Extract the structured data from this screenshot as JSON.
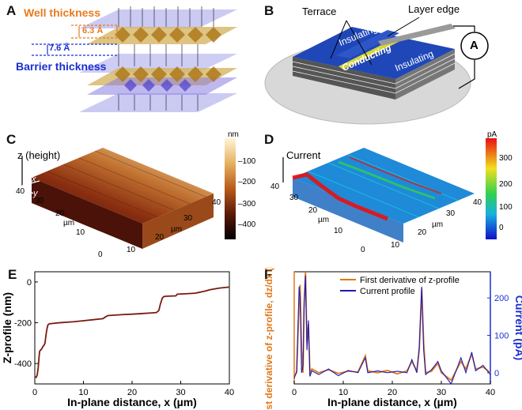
{
  "panels": {
    "A": {
      "label": "A",
      "well_label": "Well thickness",
      "barrier_label": "Barrier thickness",
      "well_value": "6.3 Å",
      "barrier_value": "7.6 Å",
      "colors": {
        "well": "#e87b1e",
        "barrier": "#1a2fd0"
      }
    },
    "B": {
      "label": "B",
      "terrace": "Terrace",
      "layer_edge": "Layer edge",
      "insulating_1": "Insulating",
      "conducting": "Conducting",
      "insulating_2": "Insulating",
      "ammeter": "A"
    },
    "C": {
      "label": "C",
      "z_axis": "z (height)",
      "x_axis_mark": "x",
      "y_axis_mark": "y",
      "unit_left": "µm",
      "unit_right": "µm",
      "left_ticks": [
        "40",
        "30",
        "20",
        "10",
        "0"
      ],
      "right_ticks": [
        "10",
        "20",
        "30",
        "40"
      ],
      "colorbar_unit": "nm",
      "colorbar_ticks": [
        "–100",
        "–200",
        "–300",
        "–400"
      ]
    },
    "D": {
      "label": "D",
      "z_axis": "Current",
      "unit_left": "µm",
      "unit_right": "µm",
      "left_ticks": [
        "40",
        "30",
        "20",
        "10",
        "0"
      ],
      "right_ticks": [
        "10",
        "20",
        "30",
        "40"
      ],
      "colorbar_unit": "pA",
      "colorbar_ticks": [
        "300",
        "200",
        "100",
        "0"
      ]
    }
  },
  "chart_data": [
    {
      "type": "line",
      "panel": "E",
      "label": "E",
      "xlabel": "In-plane distance, x (µm)",
      "ylabel": "Z-profile (nm)",
      "xlim": [
        0,
        40
      ],
      "ylim": [
        -500,
        50
      ],
      "xticks": [
        0,
        10,
        20,
        30,
        40
      ],
      "yticks": [
        0,
        -200,
        -400
      ],
      "series": [
        {
          "name": "Z-profile",
          "color": "#7a1a10",
          "x": [
            0,
            0.3,
            0.5,
            0.7,
            0.9,
            1.0,
            1.15,
            1.3,
            1.5,
            1.7,
            1.9,
            2.1,
            2.3,
            2.5,
            2.7,
            3.0,
            5,
            8,
            10,
            12,
            14,
            14.5,
            15,
            18,
            20,
            22,
            24,
            25,
            25.5,
            25.8,
            26.2,
            26.5,
            27,
            29,
            29.3,
            31,
            33,
            34,
            35,
            36,
            38,
            40
          ],
          "values": [
            -465,
            -468,
            -455,
            -420,
            -360,
            -340,
            -335,
            -332,
            -325,
            -315,
            -310,
            -300,
            -260,
            -230,
            -210,
            -205,
            -200,
            -195,
            -190,
            -185,
            -180,
            -172,
            -165,
            -160,
            -158,
            -155,
            -152,
            -150,
            -140,
            -110,
            -80,
            -72,
            -70,
            -68,
            -60,
            -58,
            -55,
            -50,
            -45,
            -38,
            -30,
            -25
          ]
        }
      ]
    },
    {
      "type": "line",
      "panel": "F",
      "label": "F",
      "xlabel": "In-plane distance, x (µm)",
      "ylabel_left": "First derivative of z-profile, dz/dx (nm/µm)",
      "ylabel_right": "Current (pA)",
      "xlim": [
        0,
        40
      ],
      "ylim_right": [
        -30,
        270
      ],
      "xticks": [
        0,
        10,
        20,
        30,
        40
      ],
      "yticks_right": [
        0,
        100,
        200
      ],
      "legend": [
        "First derivative of z-profile",
        "Current profile"
      ],
      "legend_position": "top-right",
      "series": [
        {
          "name": "First derivative of z-profile",
          "color": "#e07818",
          "x": [
            0,
            0.5,
            1.0,
            1.2,
            1.5,
            1.8,
            2.0,
            2.3,
            2.6,
            2.9,
            3.2,
            3.6,
            5,
            7,
            9,
            11,
            13,
            14.5,
            15,
            17,
            19,
            21,
            23,
            24,
            25,
            25.5,
            26.0,
            26.4,
            26.8,
            28,
            29.3,
            30,
            32,
            34,
            35,
            36.2,
            37,
            38.5,
            40
          ],
          "values": [
            -10,
            0,
            190,
            235,
            60,
            0,
            180,
            270,
            80,
            130,
            0,
            10,
            0,
            8,
            -2,
            4,
            2,
            45,
            5,
            0,
            6,
            -3,
            5,
            30,
            5,
            60,
            225,
            80,
            0,
            4,
            25,
            0,
            -20,
            30,
            10,
            50,
            10,
            15,
            0
          ]
        },
        {
          "name": "Current profile",
          "color": "#1a1ab8",
          "x": [
            0,
            0.5,
            1.0,
            1.2,
            1.5,
            1.8,
            2.0,
            2.3,
            2.6,
            2.9,
            3.2,
            3.6,
            5,
            7,
            9,
            11,
            13,
            14.5,
            15,
            17,
            19,
            21,
            23,
            24,
            25,
            25.5,
            26.0,
            26.4,
            26.8,
            28,
            29.3,
            30,
            32,
            34,
            35,
            36.2,
            37,
            38.5,
            40
          ],
          "values": [
            -15,
            5,
            230,
            200,
            0,
            20,
            170,
            260,
            60,
            140,
            -10,
            5,
            -5,
            10,
            -8,
            6,
            0,
            40,
            0,
            5,
            0,
            4,
            0,
            35,
            0,
            70,
            230,
            60,
            -5,
            8,
            30,
            5,
            -30,
            40,
            0,
            55,
            5,
            20,
            -5
          ]
        }
      ]
    }
  ]
}
